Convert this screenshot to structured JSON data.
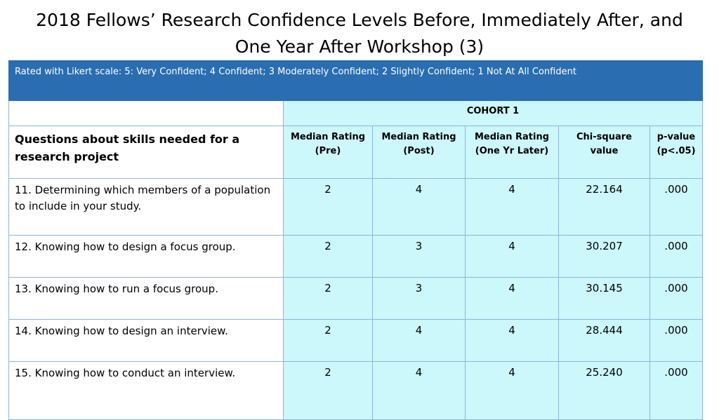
{
  "title": {
    "line1": "2018 Fellows’ Research Confidence Levels Before, Immediately After, and",
    "line2": "One Year After  Workshop (3)"
  },
  "table": {
    "banner": "Rated with Likert scale: 5: Very Confident; 4 Confident; 3 Moderately Confident; 2 Slightly Confident; 1 Not At All Confident",
    "cohort": "COHORT 1",
    "question_header": "Questions about skills needed for a research project",
    "headers": [
      {
        "line1": "Median Rating",
        "line2": "(Pre)"
      },
      {
        "line1": "Median Rating",
        "line2": "(Post)"
      },
      {
        "line1": "Median Rating",
        "line2": "(One Yr Later)"
      },
      {
        "line1": "Chi-square",
        "line2": "value"
      },
      {
        "line1": "p-value",
        "line2": "(p<.05)"
      }
    ],
    "rows": [
      {
        "question": "11. Determining which members of a population to include in your study.",
        "pre": "2",
        "post": "4",
        "later": "4",
        "chi": "22.164",
        "p": ".000"
      },
      {
        "question": "12. Knowing how to design a focus group.",
        "pre": "2",
        "post": "3",
        "later": "4",
        "chi": "30.207",
        "p": ".000"
      },
      {
        "question": "13. Knowing how to run a focus group.",
        "pre": "2",
        "post": "3",
        "later": "4",
        "chi": "30.145",
        "p": ".000"
      },
      {
        "question": "14. Knowing how to design an interview.",
        "pre": "2",
        "post": "4",
        "later": "4",
        "chi": "28.444",
        "p": ".000"
      },
      {
        "question": "15. Knowing how to conduct an interview.",
        "pre": "2",
        "post": "4",
        "later": "4",
        "chi": "25.240",
        "p": ".000"
      }
    ]
  }
}
